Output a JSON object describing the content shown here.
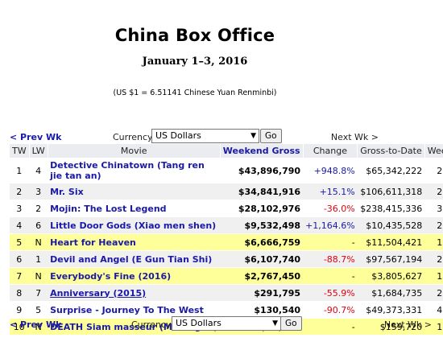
{
  "header": {
    "title": "China Box Office",
    "date": "January 1–3, 2016",
    "rate": "(US $1 = 6.51141 Chinese Yuan Renminbi)"
  },
  "nav": {
    "prev": "< Prev Wk",
    "next": "Next Wk >",
    "currency_label": "Currency:",
    "currency_value": "US Dollars",
    "go": "Go"
  },
  "table": {
    "columns": [
      "TW",
      "LW",
      "Movie",
      "Weekend Gross",
      "Change",
      "Gross-to-Date",
      "Week"
    ],
    "sorted_column": "Weekend Gross",
    "rows": [
      {
        "tw": "1",
        "lw": "4",
        "movie": "Detective Chinatown (Tang ren jie tan an)",
        "gross": "$43,896,790",
        "change": "+948.8%",
        "change_type": "pos",
        "to_date": "$65,342,222",
        "week": "2",
        "hl": false,
        "gray": false,
        "underline": false
      },
      {
        "tw": "2",
        "lw": "3",
        "movie": "Mr. Six",
        "gross": "$34,841,916",
        "change": "+15.1%",
        "change_type": "pos",
        "to_date": "$106,611,318",
        "week": "2",
        "hl": false,
        "gray": true,
        "underline": false
      },
      {
        "tw": "3",
        "lw": "2",
        "movie": "Mojin: The Lost Legend",
        "gross": "$28,102,976",
        "change": "-36.0%",
        "change_type": "neg",
        "to_date": "$238,415,336",
        "week": "3",
        "hl": false,
        "gray": false,
        "underline": false
      },
      {
        "tw": "4",
        "lw": "6",
        "movie": "Little Door Gods (Xiao men shen)",
        "gross": "$9,532,498",
        "change": "+1,164.6%",
        "change_type": "pos",
        "to_date": "$10,435,528",
        "week": "2",
        "hl": false,
        "gray": true,
        "underline": false
      },
      {
        "tw": "5",
        "lw": "N",
        "movie": "Heart for Heaven",
        "gross": "$6,666,759",
        "change": "-",
        "change_type": "nil",
        "to_date": "$11,504,421",
        "week": "1",
        "hl": true,
        "gray": false,
        "underline": false
      },
      {
        "tw": "6",
        "lw": "1",
        "movie": "Devil and Angel (E Gun Tian Shi)",
        "gross": "$6,107,740",
        "change": "-88.7%",
        "change_type": "neg",
        "to_date": "$97,567,194",
        "week": "2",
        "hl": false,
        "gray": true,
        "underline": false
      },
      {
        "tw": "7",
        "lw": "N",
        "movie": "Everybody's Fine (2016)",
        "gross": "$2,767,450",
        "change": "-",
        "change_type": "nil",
        "to_date": "$3,805,627",
        "week": "1",
        "hl": true,
        "gray": false,
        "underline": false
      },
      {
        "tw": "8",
        "lw": "7",
        "movie": "Anniversary (2015)",
        "gross": "$291,795",
        "change": "-55.9%",
        "change_type": "neg",
        "to_date": "$1,684,735",
        "week": "2",
        "hl": false,
        "gray": true,
        "underline": true
      },
      {
        "tw": "9",
        "lw": "5",
        "movie": "Surprise - Journey To The West",
        "gross": "$130,540",
        "change": "-90.7%",
        "change_type": "neg",
        "to_date": "$49,373,331",
        "week": "4",
        "hl": false,
        "gray": false,
        "underline": false
      },
      {
        "tw": "10",
        "lw": "N",
        "movie": "DEATH Siam masseur (Massagist)",
        "gross": "$36,858",
        "change": "-",
        "change_type": "nil",
        "to_date": "$159,720",
        "week": "1",
        "hl": true,
        "gray": false,
        "underline": false
      }
    ]
  }
}
